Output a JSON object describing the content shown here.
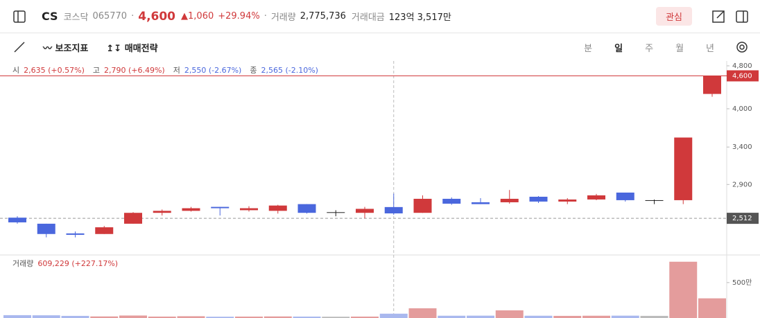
{
  "header": {
    "symbol": "CS",
    "market": "코스닥",
    "code": "065770",
    "price": "4,600",
    "change": "1,060",
    "change_pct": "+29.94%",
    "volume_label": "거래량",
    "volume": "2,775,736",
    "amount_label": "거래대금",
    "amount": "123억 3,517만",
    "favorite": "관심"
  },
  "toolbar": {
    "indicators": "보조지표",
    "strategy": "매매전략",
    "periods": [
      "분",
      "일",
      "주",
      "월",
      "년"
    ],
    "selected_period": 1
  },
  "chart_data": {
    "type": "candlestick",
    "info": {
      "open_label": "시",
      "open": "2,635 (+0.57%)",
      "high_label": "고",
      "high": "2,790 (+6.49%)",
      "low_label": "저",
      "low": "2,550 (-2.67%)",
      "close_label": "종",
      "close": "2,565 (-2.10%)"
    },
    "open": [
      2519,
      2455,
      2356,
      2350,
      2455,
      2571,
      2593,
      2637,
      2600,
      2593,
      2668,
      2578,
      2571,
      2635,
      2571,
      2729,
      2689,
      2689,
      2753,
      2697,
      2721,
      2802,
      2713,
      2713,
      4260
    ],
    "high": [
      2534,
      2455,
      2375,
      2432,
      2578,
      2608,
      2637,
      2637,
      2645,
      2660,
      2668,
      2600,
      2637,
      2790,
      2769,
      2745,
      2737,
      2833,
      2761,
      2737,
      2786,
      2802,
      2721,
      3540,
      4600
    ],
    "low": [
      2455,
      2317,
      2317,
      2350,
      2455,
      2542,
      2585,
      2542,
      2585,
      2563,
      2563,
      2534,
      2512,
      2550,
      2571,
      2660,
      2668,
      2673,
      2681,
      2668,
      2713,
      2697,
      2668,
      2668,
      4210
    ],
    "close": [
      2469,
      2350,
      2342,
      2418,
      2571,
      2593,
      2622,
      2622,
      2622,
      2652,
      2571,
      2578,
      2615,
      2565,
      2729,
      2673,
      2668,
      2729,
      2697,
      2721,
      2769,
      2713,
      2713,
      3540,
      4600
    ],
    "up_color": "#d0393b",
    "down_color": "#4a67dd",
    "flat_color": "#222222",
    "ylim": [
      2150,
      4900
    ],
    "log_scale": true,
    "yticks": [
      {
        "value": 2900,
        "label": "2,900"
      },
      {
        "value": 3400,
        "label": "3,400"
      },
      {
        "value": 4000,
        "label": "4,000"
      },
      {
        "value": 4800,
        "label": "4,800"
      }
    ],
    "last_price": {
      "value": 4600,
      "label": "4,600"
    },
    "crosshair": {
      "value": 2512,
      "label": "2,512",
      "index": 13
    },
    "volume_title": "거래량",
    "volume_info": "609,229 (+227.17%)",
    "volume": [
      400000,
      380000,
      300000,
      220000,
      350000,
      200000,
      250000,
      180000,
      200000,
      220000,
      200000,
      180000,
      200000,
      609229,
      1370000,
      320000,
      330000,
      1080000,
      320000,
      300000,
      320000,
      330000,
      300000,
      7940000,
      2775736
    ],
    "vlim": [
      0,
      8700000
    ],
    "vticks": [
      {
        "value": 5000000,
        "label": "500만"
      }
    ]
  }
}
